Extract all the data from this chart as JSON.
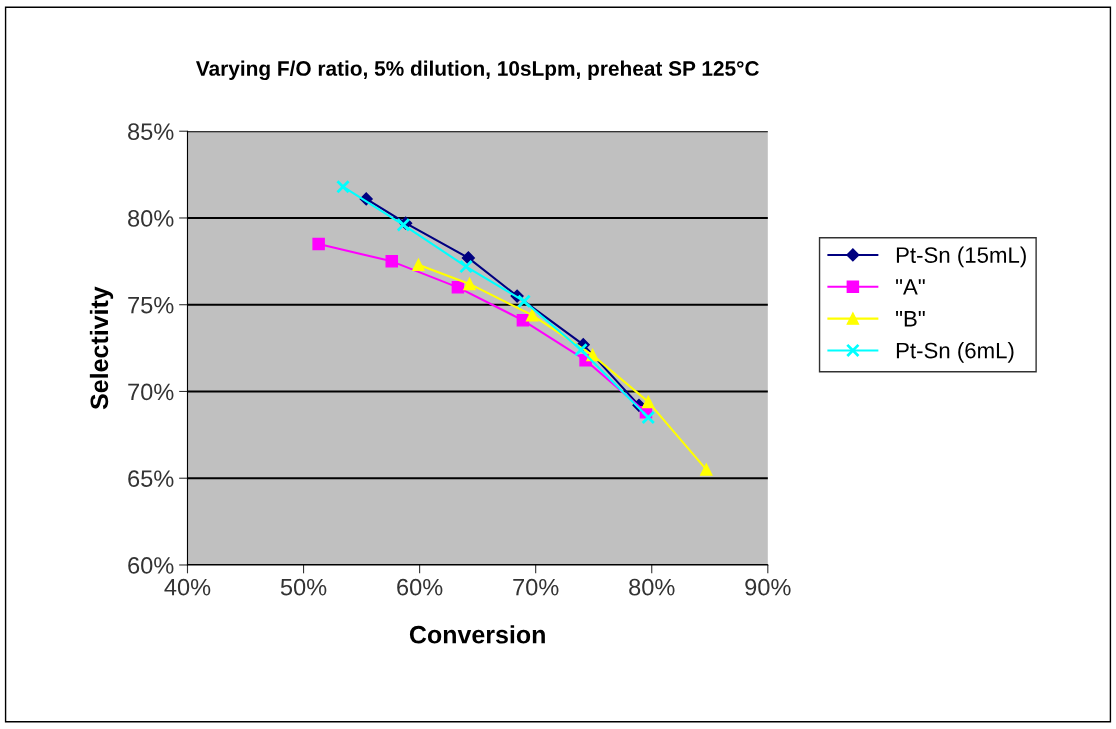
{
  "chart_data": {
    "type": "line",
    "title": "Varying F/O ratio, 5% dilution, 10sLpm, preheat SP 125°C",
    "xlabel": "Conversion",
    "ylabel": "Selectivity",
    "xlim": [
      0.4,
      0.9
    ],
    "xticks": [
      {
        "value": 0.4,
        "label": "40%"
      },
      {
        "value": 0.5,
        "label": "50%"
      },
      {
        "value": 0.6,
        "label": "60%"
      },
      {
        "value": 0.7,
        "label": "70%"
      },
      {
        "value": 0.8,
        "label": "80%"
      },
      {
        "value": 0.9,
        "label": "90%"
      }
    ],
    "ylim": [
      0.6,
      0.85
    ],
    "yticks": [
      {
        "value": 0.6,
        "label": "60%"
      },
      {
        "value": 0.65,
        "label": "65%"
      },
      {
        "value": 0.7,
        "label": "70%"
      },
      {
        "value": 0.75,
        "label": "75%"
      },
      {
        "value": 0.8,
        "label": "80%"
      },
      {
        "value": 0.85,
        "label": "85%"
      }
    ],
    "grid": "y",
    "legend": "right",
    "series": [
      {
        "name": "Pt-Sn (15mL)",
        "color": "#000080",
        "marker": "diamond",
        "x": [
          0.554,
          0.588,
          0.642,
          0.684,
          0.741,
          0.789
        ],
        "values": [
          0.811,
          0.797,
          0.777,
          0.755,
          0.727,
          0.692
        ]
      },
      {
        "name": "\"A\"",
        "color": "#ff00ff",
        "marker": "square",
        "x": [
          0.513,
          0.576,
          0.633,
          0.689,
          0.743,
          0.795
        ],
        "values": [
          0.785,
          0.775,
          0.76,
          0.741,
          0.718,
          0.688
        ]
      },
      {
        "name": "\"B\"",
        "color": "#ffff00",
        "marker": "triangle",
        "x": [
          0.599,
          0.643,
          0.697,
          0.749,
          0.797,
          0.847
        ],
        "values": [
          0.773,
          0.762,
          0.744,
          0.721,
          0.694,
          0.655
        ]
      },
      {
        "name": "Pt-Sn (6mL)",
        "color": "#00ffff",
        "marker": "cross",
        "x": [
          0.534,
          0.586,
          0.64,
          0.69,
          0.739,
          0.797
        ],
        "values": [
          0.818,
          0.796,
          0.772,
          0.752,
          0.724,
          0.685
        ]
      }
    ]
  }
}
